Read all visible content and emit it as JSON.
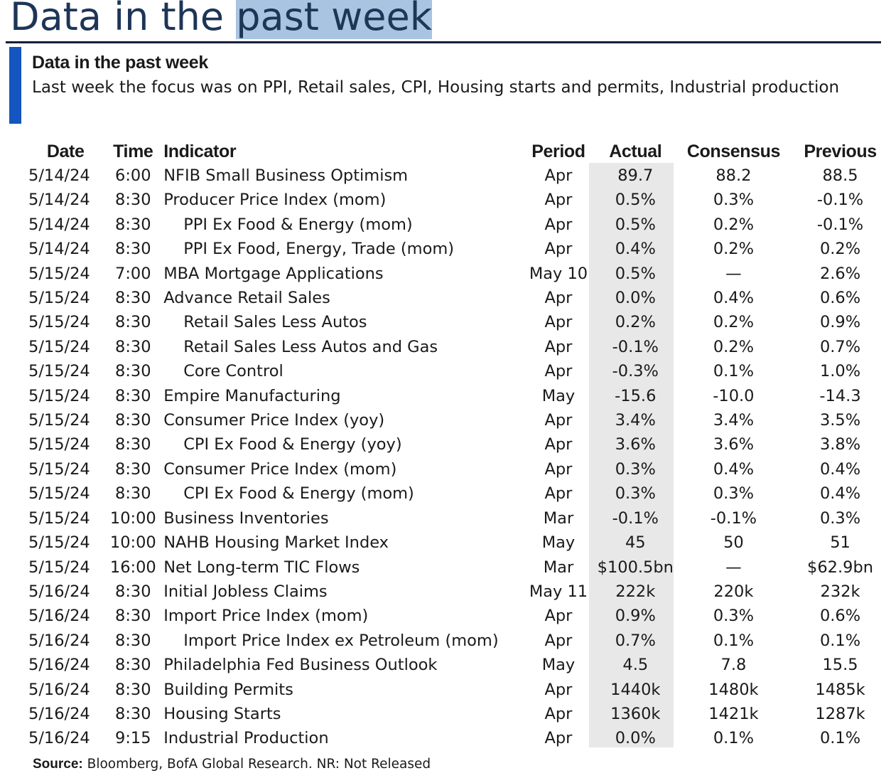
{
  "page": {
    "big_title_part1": "Data in the ",
    "big_title_part2": "past week",
    "box_heading": "Data in the past week",
    "box_subtitle": "Last week the focus was on PPI, Retail sales, CPI, Housing starts and permits, Industrial production",
    "source_label": "Source:",
    "source_text": " Bloomberg, BofA Global Research. NR: Not Released"
  },
  "table": {
    "headers": {
      "date": "Date",
      "time": "Time",
      "indicator": "Indicator",
      "period": "Period",
      "actual": "Actual",
      "consensus": "Consensus",
      "previous": "Previous"
    },
    "rows": [
      {
        "date": "5/14/24",
        "time": "6:00",
        "indicator": "NFIB Small Business Optimism",
        "sub": false,
        "period": "Apr",
        "actual": "89.7",
        "consensus": "88.2",
        "previous": "88.5"
      },
      {
        "date": "5/14/24",
        "time": "8:30",
        "indicator": "Producer Price Index (mom)",
        "sub": false,
        "period": "Apr",
        "actual": "0.5%",
        "consensus": "0.3%",
        "previous": "-0.1%"
      },
      {
        "date": "5/14/24",
        "time": "8:30",
        "indicator": "PPI Ex Food & Energy (mom)",
        "sub": true,
        "period": "Apr",
        "actual": "0.5%",
        "consensus": "0.2%",
        "previous": "-0.1%"
      },
      {
        "date": "5/14/24",
        "time": "8:30",
        "indicator": "PPI Ex Food, Energy, Trade (mom)",
        "sub": true,
        "period": "Apr",
        "actual": "0.4%",
        "consensus": "0.2%",
        "previous": "0.2%"
      },
      {
        "date": "5/15/24",
        "time": "7:00",
        "indicator": "MBA Mortgage Applications",
        "sub": false,
        "period": "May 10",
        "actual": "0.5%",
        "consensus": "—",
        "previous": "2.6%"
      },
      {
        "date": "5/15/24",
        "time": "8:30",
        "indicator": "Advance Retail Sales",
        "sub": false,
        "period": "Apr",
        "actual": "0.0%",
        "consensus": "0.4%",
        "previous": "0.6%"
      },
      {
        "date": "5/15/24",
        "time": "8:30",
        "indicator": "Retail Sales Less Autos",
        "sub": true,
        "period": "Apr",
        "actual": "0.2%",
        "consensus": "0.2%",
        "previous": "0.9%"
      },
      {
        "date": "5/15/24",
        "time": "8:30",
        "indicator": "Retail Sales Less Autos and Gas",
        "sub": true,
        "period": "Apr",
        "actual": "-0.1%",
        "consensus": "0.2%",
        "previous": "0.7%"
      },
      {
        "date": "5/15/24",
        "time": "8:30",
        "indicator": "Core Control",
        "sub": true,
        "period": "Apr",
        "actual": "-0.3%",
        "consensus": "0.1%",
        "previous": "1.0%"
      },
      {
        "date": "5/15/24",
        "time": "8:30",
        "indicator": "Empire Manufacturing",
        "sub": false,
        "period": "May",
        "actual": "-15.6",
        "consensus": "-10.0",
        "previous": "-14.3"
      },
      {
        "date": "5/15/24",
        "time": "8:30",
        "indicator": "Consumer Price Index (yoy)",
        "sub": false,
        "period": "Apr",
        "actual": "3.4%",
        "consensus": "3.4%",
        "previous": "3.5%"
      },
      {
        "date": "5/15/24",
        "time": "8:30",
        "indicator": "CPI Ex Food & Energy (yoy)",
        "sub": true,
        "period": "Apr",
        "actual": "3.6%",
        "consensus": "3.6%",
        "previous": "3.8%"
      },
      {
        "date": "5/15/24",
        "time": "8:30",
        "indicator": "Consumer Price Index (mom)",
        "sub": false,
        "period": "Apr",
        "actual": "0.3%",
        "consensus": "0.4%",
        "previous": "0.4%"
      },
      {
        "date": "5/15/24",
        "time": "8:30",
        "indicator": "CPI Ex Food & Energy (mom)",
        "sub": true,
        "period": "Apr",
        "actual": "0.3%",
        "consensus": "0.3%",
        "previous": "0.4%"
      },
      {
        "date": "5/15/24",
        "time": "10:00",
        "indicator": "Business Inventories",
        "sub": false,
        "period": "Mar",
        "actual": "-0.1%",
        "consensus": "-0.1%",
        "previous": "0.3%"
      },
      {
        "date": "5/15/24",
        "time": "10:00",
        "indicator": "NAHB Housing Market Index",
        "sub": false,
        "period": "May",
        "actual": "45",
        "consensus": "50",
        "previous": "51"
      },
      {
        "date": "5/15/24",
        "time": "16:00",
        "indicator": "Net Long-term TIC Flows",
        "sub": false,
        "period": "Mar",
        "actual": "$100.5bn",
        "consensus": "—",
        "previous": "$62.9bn"
      },
      {
        "date": "5/16/24",
        "time": "8:30",
        "indicator": "Initial Jobless Claims",
        "sub": false,
        "period": "May 11",
        "actual": "222k",
        "consensus": "220k",
        "previous": "232k"
      },
      {
        "date": "5/16/24",
        "time": "8:30",
        "indicator": "Import Price Index (mom)",
        "sub": false,
        "period": "Apr",
        "actual": "0.9%",
        "consensus": "0.3%",
        "previous": "0.6%"
      },
      {
        "date": "5/16/24",
        "time": "8:30",
        "indicator": "Import Price Index ex Petroleum (mom)",
        "sub": true,
        "period": "Apr",
        "actual": "0.7%",
        "consensus": "0.1%",
        "previous": "0.1%"
      },
      {
        "date": "5/16/24",
        "time": "8:30",
        "indicator": "Philadelphia Fed Business Outlook",
        "sub": false,
        "period": "May",
        "actual": "4.5",
        "consensus": "7.8",
        "previous": "15.5"
      },
      {
        "date": "5/16/24",
        "time": "8:30",
        "indicator": "Building Permits",
        "sub": false,
        "period": "Apr",
        "actual": "1440k",
        "consensus": "1480k",
        "previous": "1485k"
      },
      {
        "date": "5/16/24",
        "time": "8:30",
        "indicator": "Housing Starts",
        "sub": false,
        "period": "Apr",
        "actual": "1360k",
        "consensus": "1421k",
        "previous": "1287k"
      },
      {
        "date": "5/16/24",
        "time": "9:15",
        "indicator": "Industrial Production",
        "sub": false,
        "period": "Apr",
        "actual": "0.0%",
        "consensus": "0.1%",
        "previous": "0.1%"
      }
    ]
  },
  "colors": {
    "accent_bar": "#1455c0",
    "title_highlight": "#a9c4e0",
    "actual_column_bg": "#e8e8e8"
  }
}
